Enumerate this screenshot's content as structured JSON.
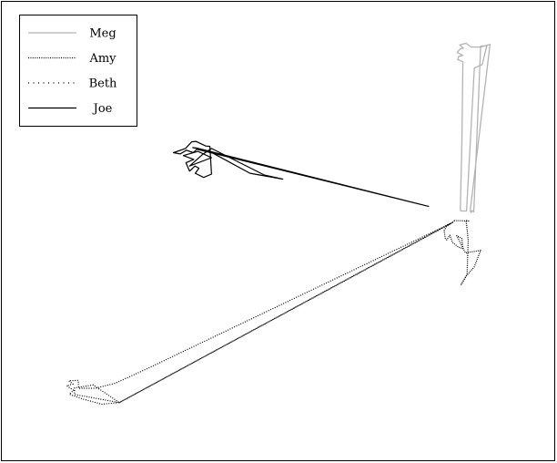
{
  "chart_data": {
    "type": "line",
    "title": "",
    "xlabel": "",
    "ylabel": "",
    "axes_visible": false,
    "x_units": "unlabeled plot coordinates",
    "y_units": "unlabeled plot coordinates",
    "xlim": [
      0,
      1000
    ],
    "ylim": [
      0,
      1000
    ],
    "grid": false,
    "legend_position": "top-left",
    "series": [
      {
        "name": "Meg",
        "color": "#b3b3b3",
        "dash": "solid",
        "points": [
          [
            851,
            552
          ],
          [
            854,
            712
          ],
          [
            856,
            905
          ],
          [
            846,
            910
          ],
          [
            848,
            918
          ],
          [
            856,
            920
          ],
          [
            845,
            927
          ],
          [
            851,
            936
          ],
          [
            857,
            937
          ],
          [
            850,
            945
          ],
          [
            862,
            949
          ],
          [
            872,
            940
          ],
          [
            890,
            940
          ],
          [
            908,
            946
          ],
          [
            870,
            549
          ],
          [
            872,
            545
          ],
          [
            873,
            550
          ],
          [
            877,
            547
          ],
          [
            890,
            942
          ],
          [
            902,
            943
          ],
          [
            893,
            898
          ],
          [
            878,
            890
          ],
          [
            863,
            549
          ],
          [
            852,
            549
          ],
          [
            851,
            552
          ]
        ]
      },
      {
        "name": "Amy",
        "color": "#000000",
        "dash": "dotted",
        "points": [
          [
            840,
            526
          ],
          [
            824,
            511
          ],
          [
            820,
            502
          ],
          [
            822,
            484
          ],
          [
            825,
            480
          ],
          [
            831,
            491
          ],
          [
            836,
            474
          ],
          [
            847,
            463
          ],
          [
            856,
            459
          ],
          [
            854,
            483
          ],
          [
            844,
            490
          ],
          [
            861,
            449
          ],
          [
            890,
            455
          ],
          [
            878,
            416
          ],
          [
            864,
            396
          ],
          [
            852,
            372
          ],
          [
            864,
            398
          ],
          [
            866,
            480
          ],
          [
            862,
            527
          ],
          [
            867,
            525
          ],
          [
            840,
            526
          ]
        ]
      },
      {
        "name": "Beth",
        "color": "#000000",
        "dash": "dotted",
        "points": [
          [
            831,
            519
          ],
          [
            196,
            92
          ],
          [
            162,
            88
          ],
          [
            124,
            101
          ],
          [
            100,
            112
          ],
          [
            108,
            121
          ],
          [
            95,
            132
          ],
          [
            107,
            136
          ],
          [
            99,
            144
          ],
          [
            117,
            145
          ],
          [
            118,
            126
          ],
          [
            150,
            126
          ],
          [
            188,
            138
          ],
          [
            250,
            173
          ],
          [
            836,
            521
          ],
          [
            196,
            92
          ],
          [
            160,
            100
          ],
          [
            125,
            108
          ],
          [
            110,
            111
          ],
          [
            110,
            127
          ],
          [
            146,
            134
          ],
          [
            196,
            92
          ],
          [
            831,
            519
          ]
        ]
      },
      {
        "name": "Joe",
        "color": "#000000",
        "dash": "solid",
        "points": [
          [
            790,
            560
          ],
          [
            345,
            696
          ],
          [
            338,
            688
          ],
          [
            325,
            694
          ],
          [
            313,
            685
          ],
          [
            300,
            688
          ],
          [
            323,
            698
          ],
          [
            327,
            703
          ],
          [
            335,
            714
          ],
          [
            343,
            715
          ],
          [
            362,
            704
          ],
          [
            370,
            703
          ],
          [
            373,
            637
          ],
          [
            358,
            629
          ],
          [
            342,
            639
          ],
          [
            349,
            651
          ],
          [
            341,
            656
          ],
          [
            331,
            644
          ],
          [
            324,
            664
          ],
          [
            339,
            672
          ],
          [
            319,
            681
          ],
          [
            347,
            691
          ],
          [
            373,
            676
          ],
          [
            331,
            656
          ],
          [
            356,
            684
          ],
          [
            373,
            698
          ],
          [
            474,
            635
          ],
          [
            510,
            625
          ],
          [
            447,
            639
          ],
          [
            368,
            692
          ],
          [
            349,
            696
          ],
          [
            790,
            560
          ],
          [
            350,
            697
          ],
          [
            337,
            700
          ],
          [
            345,
            699
          ],
          [
            790,
            560
          ]
        ]
      }
    ]
  }
}
